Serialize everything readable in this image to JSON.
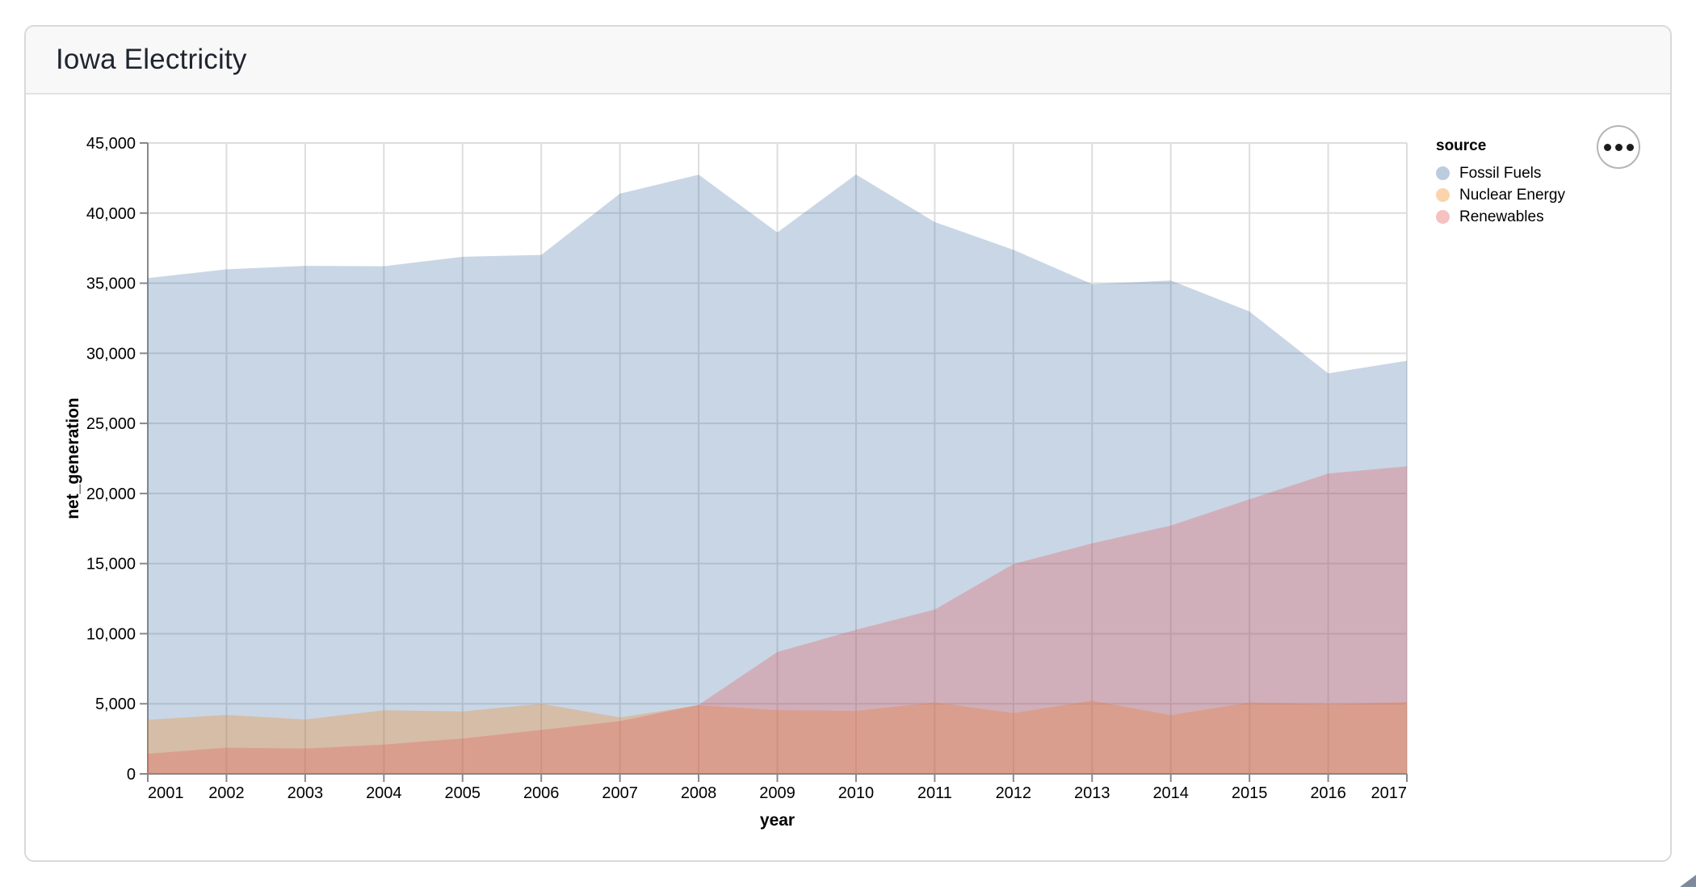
{
  "header": {
    "title": "Iowa Electricity"
  },
  "actions": {
    "icon": "more-options-ellipsis-icon"
  },
  "legend": {
    "title": "source",
    "position": "right",
    "items": [
      {
        "label": "Fossil Fuels",
        "color": "#4c78a8",
        "swatch_color": "rgba(76,120,168,0.38)"
      },
      {
        "label": "Nuclear Energy",
        "color": "#f58518",
        "swatch_color": "rgba(245,133,24,0.36)"
      },
      {
        "label": "Renewables",
        "color": "#e45756",
        "swatch_color": "rgba(228,87,86,0.37)"
      }
    ]
  },
  "chart_data": {
    "type": "area",
    "stacked": false,
    "opacity": 0.3,
    "xlabel": "year",
    "ylabel": "net_generation",
    "x": [
      2001,
      2002,
      2003,
      2004,
      2005,
      2006,
      2007,
      2008,
      2009,
      2010,
      2011,
      2012,
      2013,
      2014,
      2015,
      2016,
      2017
    ],
    "x_tick_labels": [
      "2001",
      "2002",
      "2003",
      "2004",
      "2005",
      "2006",
      "2007",
      "2008",
      "2009",
      "2010",
      "2011",
      "2012",
      "2013",
      "2014",
      "2015",
      "2016",
      "2017"
    ],
    "xlim": [
      2001,
      2017
    ],
    "ylim": [
      0,
      45000
    ],
    "y_tick_values": [
      0,
      5000,
      10000,
      15000,
      20000,
      25000,
      30000,
      35000,
      40000,
      45000
    ],
    "y_tick_labels": [
      "0",
      "5,000",
      "10,000",
      "15,000",
      "20,000",
      "25,000",
      "30,000",
      "35,000",
      "40,000",
      "45,000"
    ],
    "grid": true,
    "label_flush": true,
    "grid_color": "#dddddd",
    "axis_color": "#888888",
    "label_color": "#000000",
    "series": [
      {
        "name": "Fossil Fuels",
        "color": "#4c78a8",
        "values": [
          35361,
          35991,
          36234,
          36205,
          36883,
          37014,
          41390,
          42734,
          38620,
          42750,
          39361,
          37380,
          34926,
          35193,
          32982,
          28567,
          29464
        ]
      },
      {
        "name": "Nuclear Energy",
        "color": "#f58518",
        "values": [
          3853,
          4209,
          3877,
          4543,
          4448,
          4996,
          4021,
          4896,
          4547,
          4493,
          5101,
          4332,
          5219,
          4182,
          5094,
          4966,
          5120
        ]
      },
      {
        "name": "Renewables",
        "color": "#e45756",
        "values": [
          1437,
          1867,
          1807,
          2093,
          2525,
          3135,
          3759,
          4925,
          8695,
          10282,
          11722,
          14962,
          16442,
          17712,
          19585,
          21423,
          21933
        ]
      }
    ]
  }
}
